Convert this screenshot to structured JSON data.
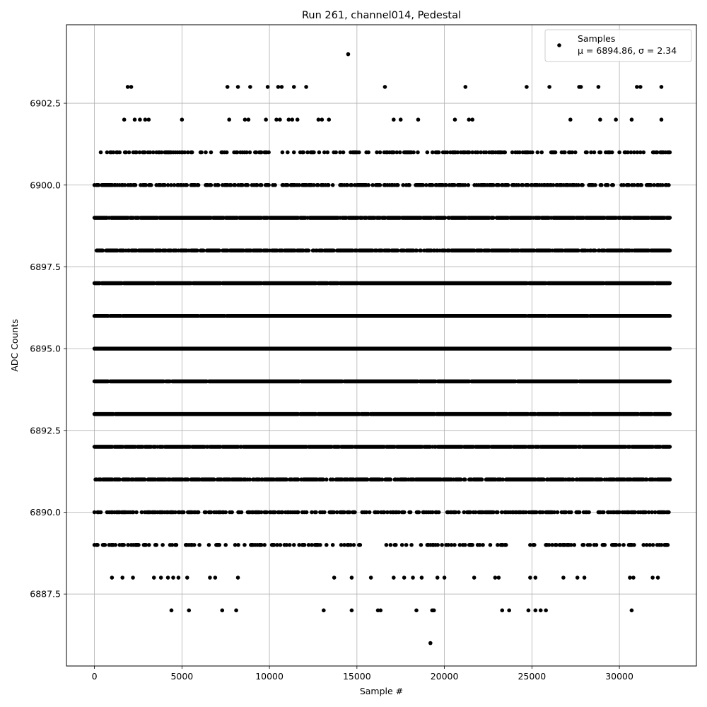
{
  "chart_data": {
    "type": "scatter",
    "title": "Run 261, channel014, Pedestal",
    "xlabel": "Sample #",
    "ylabel": "ADC Counts",
    "xlim": [
      -1600,
      34400
    ],
    "ylim": [
      6885.3,
      6904.9
    ],
    "xticks": [
      0,
      5000,
      10000,
      15000,
      20000,
      25000,
      30000
    ],
    "yticks": [
      6887.5,
      6890.0,
      6892.5,
      6895.0,
      6897.5,
      6900.0,
      6902.5
    ],
    "grid": true,
    "legend_position": "top-right",
    "series": [
      {
        "name": "Samples",
        "color": "#000000",
        "marker": "circle",
        "x_range": [
          0,
          32900
        ],
        "dense_levels": [
          6889,
          6890,
          6891,
          6892,
          6893,
          6894,
          6895,
          6896,
          6897,
          6898,
          6899,
          6900,
          6901
        ],
        "level_density": {
          "6888": 0.03,
          "6889": 0.34,
          "6890": 0.55,
          "6891": 0.8,
          "6892": 0.92,
          "6893": 0.98,
          "6894": 0.99,
          "6895": 1.0,
          "6896": 0.99,
          "6897": 0.97,
          "6898": 0.85,
          "6899": 0.93,
          "6900": 0.55,
          "6901": 0.35,
          "6902": 0.02
        },
        "sparse_points": [
          [
            4400,
            6887
          ],
          [
            5400,
            6887
          ],
          [
            7300,
            6887
          ],
          [
            8100,
            6887
          ],
          [
            13100,
            6887
          ],
          [
            14700,
            6887
          ],
          [
            16200,
            6887
          ],
          [
            16350,
            6887
          ],
          [
            18400,
            6887
          ],
          [
            19300,
            6887
          ],
          [
            19400,
            6887
          ],
          [
            23300,
            6887
          ],
          [
            23700,
            6887
          ],
          [
            24800,
            6887
          ],
          [
            25200,
            6887
          ],
          [
            25500,
            6887
          ],
          [
            25800,
            6887
          ],
          [
            30700,
            6887
          ],
          [
            19200,
            6886
          ],
          [
            1000,
            6888
          ],
          [
            1600,
            6888
          ],
          [
            2200,
            6888
          ],
          [
            3400,
            6888
          ],
          [
            3800,
            6888
          ],
          [
            4200,
            6888
          ],
          [
            4500,
            6888
          ],
          [
            4800,
            6888
          ],
          [
            5300,
            6888
          ],
          [
            6600,
            6888
          ],
          [
            6900,
            6888
          ],
          [
            8200,
            6888
          ],
          [
            13700,
            6888
          ],
          [
            14700,
            6888
          ],
          [
            15800,
            6888
          ],
          [
            17100,
            6888
          ],
          [
            17700,
            6888
          ],
          [
            18200,
            6888
          ],
          [
            18700,
            6888
          ],
          [
            19600,
            6888
          ],
          [
            20000,
            6888
          ],
          [
            21700,
            6888
          ],
          [
            22900,
            6888
          ],
          [
            23100,
            6888
          ],
          [
            24900,
            6888
          ],
          [
            25200,
            6888
          ],
          [
            26800,
            6888
          ],
          [
            27600,
            6888
          ],
          [
            28000,
            6888
          ],
          [
            30600,
            6888
          ],
          [
            30800,
            6888
          ],
          [
            31900,
            6888
          ],
          [
            32200,
            6888
          ],
          [
            1700,
            6902
          ],
          [
            2300,
            6902
          ],
          [
            2600,
            6902
          ],
          [
            2900,
            6902
          ],
          [
            3100,
            6902
          ],
          [
            5000,
            6902
          ],
          [
            7700,
            6902
          ],
          [
            8600,
            6902
          ],
          [
            8800,
            6902
          ],
          [
            9800,
            6902
          ],
          [
            10400,
            6902
          ],
          [
            10600,
            6902
          ],
          [
            11100,
            6902
          ],
          [
            11300,
            6902
          ],
          [
            11600,
            6902
          ],
          [
            12800,
            6902
          ],
          [
            13000,
            6902
          ],
          [
            13400,
            6902
          ],
          [
            17100,
            6902
          ],
          [
            17500,
            6902
          ],
          [
            18500,
            6902
          ],
          [
            20600,
            6902
          ],
          [
            21400,
            6902
          ],
          [
            21600,
            6902
          ],
          [
            27200,
            6902
          ],
          [
            28900,
            6902
          ],
          [
            29800,
            6902
          ],
          [
            30700,
            6902
          ],
          [
            32400,
            6902
          ],
          [
            1900,
            6903
          ],
          [
            2100,
            6903
          ],
          [
            7600,
            6903
          ],
          [
            8200,
            6903
          ],
          [
            8900,
            6903
          ],
          [
            9900,
            6903
          ],
          [
            10500,
            6903
          ],
          [
            10700,
            6903
          ],
          [
            11400,
            6903
          ],
          [
            12100,
            6903
          ],
          [
            16600,
            6903
          ],
          [
            21200,
            6903
          ],
          [
            24700,
            6903
          ],
          [
            26000,
            6903
          ],
          [
            27700,
            6903
          ],
          [
            27800,
            6903
          ],
          [
            28800,
            6903
          ],
          [
            31000,
            6903
          ],
          [
            31200,
            6903
          ],
          [
            32400,
            6903
          ],
          [
            14500,
            6904
          ]
        ]
      }
    ],
    "legend_label": "Samples",
    "legend_stats": "μ = 6894.86, σ = 2.34"
  }
}
